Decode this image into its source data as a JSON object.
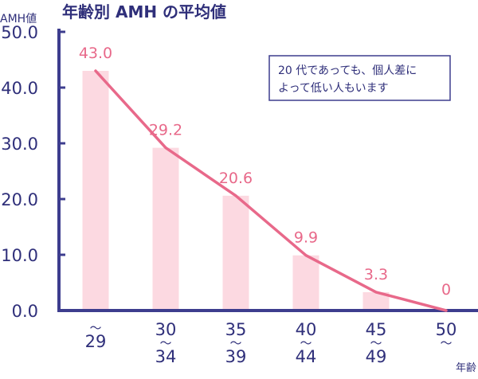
{
  "chart_data": {
    "type": "bar",
    "title": "年齢別 AMH の平均値",
    "ylabel": "AMH値",
    "xlabel": "年齢",
    "categories": [
      "〜\n29",
      "30\n〜\n34",
      "35\n〜\n39",
      "40\n〜\n44",
      "45\n〜\n49",
      "50\n〜"
    ],
    "values": [
      43.0,
      29.2,
      20.6,
      9.9,
      3.3,
      0
    ],
    "value_labels": [
      "43.0",
      "29.2",
      "20.6",
      "9.9",
      "3.3",
      "0"
    ],
    "y_ticks": [
      "0.0",
      "10.0",
      "20.0",
      "30.0",
      "40.0",
      "50.0"
    ],
    "ylim": [
      0,
      50
    ],
    "overlay": "line",
    "annotation": "20 代であっても、個人差に\nよって低い人もいます",
    "colors": {
      "bar": "#fcd9e1",
      "line": "#e8698a",
      "value_label": "#e8698a",
      "axis": "#3d3d8e",
      "text": "#2f2f7a",
      "annotation_border": "#3d3d8e"
    }
  }
}
